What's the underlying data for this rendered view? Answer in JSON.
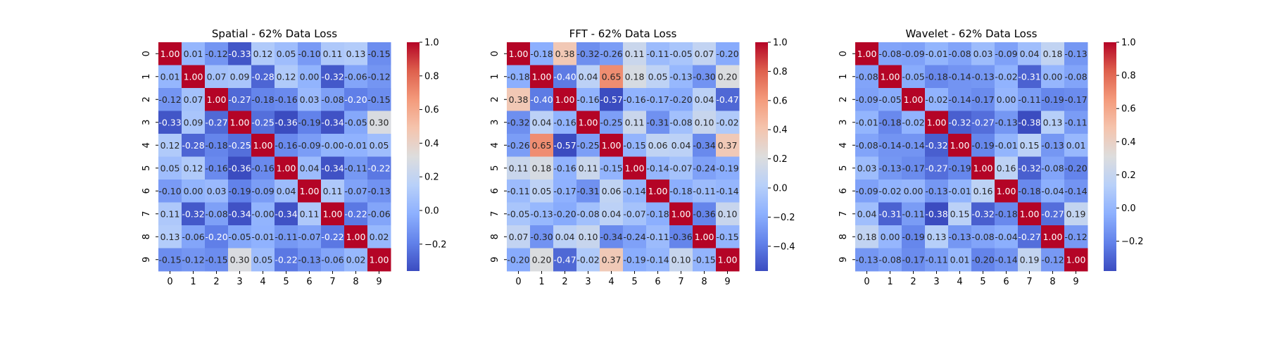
{
  "figure": {
    "background": "#ffffff"
  },
  "colormap": {
    "name": "coolwarm",
    "low": "#3b4cc0",
    "mid": "#dddddd",
    "high": "#b40426"
  },
  "chart_data": [
    {
      "type": "heatmap",
      "title": "Spatial - 62% Data Loss",
      "x_labels": [
        "0",
        "1",
        "2",
        "3",
        "4",
        "5",
        "6",
        "7",
        "8",
        "9"
      ],
      "y_labels": [
        "0",
        "1",
        "2",
        "3",
        "4",
        "5",
        "6",
        "7",
        "8",
        "9"
      ],
      "vmin": -0.36,
      "vmax": 1.0,
      "colorbar_ticks": [
        "1.0",
        "0.8",
        "0.6",
        "0.4",
        "0.2",
        "0.0",
        "−0.2"
      ],
      "values": [
        [
          1.0,
          0.01,
          -0.12,
          -0.33,
          0.12,
          0.05,
          -0.1,
          0.11,
          0.13,
          -0.15
        ],
        [
          0.01,
          1.0,
          0.07,
          0.09,
          -0.28,
          0.12,
          0.0,
          -0.32,
          -0.06,
          -0.12
        ],
        [
          -0.12,
          0.07,
          1.0,
          -0.27,
          -0.18,
          -0.16,
          0.03,
          -0.08,
          -0.2,
          -0.15
        ],
        [
          -0.33,
          0.09,
          -0.27,
          1.0,
          -0.25,
          -0.36,
          -0.19,
          -0.34,
          -0.05,
          0.3
        ],
        [
          0.12,
          -0.28,
          -0.18,
          -0.25,
          1.0,
          -0.16,
          -0.09,
          -0.0,
          -0.01,
          0.05
        ],
        [
          0.05,
          0.12,
          -0.16,
          -0.36,
          -0.16,
          1.0,
          0.04,
          -0.34,
          -0.11,
          -0.22
        ],
        [
          -0.1,
          0.0,
          0.03,
          -0.19,
          -0.09,
          0.04,
          1.0,
          0.11,
          -0.07,
          -0.13
        ],
        [
          0.11,
          -0.32,
          -0.08,
          -0.34,
          -0.0,
          -0.34,
          0.11,
          1.0,
          -0.22,
          -0.06
        ],
        [
          0.13,
          -0.06,
          -0.2,
          -0.05,
          -0.01,
          -0.11,
          -0.07,
          -0.22,
          1.0,
          0.02
        ],
        [
          -0.15,
          -0.12,
          -0.15,
          0.3,
          0.05,
          -0.22,
          -0.13,
          -0.06,
          0.02,
          1.0
        ]
      ]
    },
    {
      "type": "heatmap",
      "title": "FFT - 62% Data Loss",
      "x_labels": [
        "0",
        "1",
        "2",
        "3",
        "4",
        "5",
        "6",
        "7",
        "8",
        "9"
      ],
      "y_labels": [
        "0",
        "1",
        "2",
        "3",
        "4",
        "5",
        "6",
        "7",
        "8",
        "9"
      ],
      "vmin": -0.57,
      "vmax": 1.0,
      "colorbar_ticks": [
        "1.0",
        "0.8",
        "0.6",
        "0.4",
        "0.2",
        "0.0",
        "−0.2",
        "−0.4"
      ],
      "values": [
        [
          1.0,
          -0.18,
          0.38,
          -0.32,
          -0.26,
          0.11,
          -0.11,
          -0.05,
          0.07,
          -0.2
        ],
        [
          -0.18,
          1.0,
          -0.4,
          0.04,
          0.65,
          0.18,
          0.05,
          -0.13,
          -0.3,
          0.2
        ],
        [
          0.38,
          -0.4,
          1.0,
          -0.16,
          -0.57,
          -0.16,
          -0.17,
          -0.2,
          0.04,
          -0.47
        ],
        [
          -0.32,
          0.04,
          -0.16,
          1.0,
          -0.25,
          0.11,
          -0.31,
          -0.08,
          0.1,
          -0.02
        ],
        [
          -0.26,
          0.65,
          -0.57,
          -0.25,
          1.0,
          -0.15,
          0.06,
          0.04,
          -0.34,
          0.37
        ],
        [
          0.11,
          0.18,
          -0.16,
          0.11,
          -0.15,
          1.0,
          -0.14,
          -0.07,
          -0.24,
          -0.19
        ],
        [
          -0.11,
          0.05,
          -0.17,
          -0.31,
          0.06,
          -0.14,
          1.0,
          -0.18,
          -0.11,
          -0.14
        ],
        [
          -0.05,
          -0.13,
          -0.2,
          -0.08,
          0.04,
          -0.07,
          -0.18,
          1.0,
          -0.36,
          0.1
        ],
        [
          0.07,
          -0.3,
          0.04,
          0.1,
          -0.34,
          -0.24,
          -0.11,
          -0.36,
          1.0,
          -0.15
        ],
        [
          -0.2,
          0.2,
          -0.47,
          -0.02,
          0.37,
          -0.19,
          -0.14,
          0.1,
          -0.15,
          1.0
        ]
      ]
    },
    {
      "type": "heatmap",
      "title": "Wavelet - 62% Data Loss",
      "x_labels": [
        "0",
        "1",
        "2",
        "3",
        "4",
        "5",
        "6",
        "7",
        "8",
        "9"
      ],
      "y_labels": [
        "0",
        "1",
        "2",
        "3",
        "4",
        "5",
        "6",
        "7",
        "8",
        "9"
      ],
      "vmin": -0.38,
      "vmax": 1.0,
      "colorbar_ticks": [
        "1.0",
        "0.8",
        "0.6",
        "0.4",
        "0.2",
        "0.0",
        "−0.2"
      ],
      "values": [
        [
          1.0,
          -0.08,
          -0.09,
          -0.01,
          -0.08,
          0.03,
          -0.09,
          0.04,
          0.18,
          -0.13
        ],
        [
          -0.08,
          1.0,
          -0.05,
          -0.18,
          -0.14,
          -0.13,
          -0.02,
          -0.31,
          0.0,
          -0.08
        ],
        [
          -0.09,
          -0.05,
          1.0,
          -0.02,
          -0.14,
          -0.17,
          0.0,
          -0.11,
          -0.19,
          -0.17
        ],
        [
          -0.01,
          -0.18,
          -0.02,
          1.0,
          -0.32,
          -0.27,
          -0.13,
          -0.38,
          0.13,
          -0.11
        ],
        [
          -0.08,
          -0.14,
          -0.14,
          -0.32,
          1.0,
          -0.19,
          -0.01,
          0.15,
          -0.13,
          0.01
        ],
        [
          0.03,
          -0.13,
          -0.17,
          -0.27,
          -0.19,
          1.0,
          0.16,
          -0.32,
          -0.08,
          -0.2
        ],
        [
          -0.09,
          -0.02,
          0.0,
          -0.13,
          -0.01,
          0.16,
          1.0,
          -0.18,
          -0.04,
          -0.14
        ],
        [
          0.04,
          -0.31,
          -0.11,
          -0.38,
          0.15,
          -0.32,
          -0.18,
          1.0,
          -0.27,
          0.19
        ],
        [
          0.18,
          0.0,
          -0.19,
          0.13,
          -0.13,
          -0.08,
          -0.04,
          -0.27,
          1.0,
          -0.12
        ],
        [
          -0.13,
          -0.08,
          -0.17,
          -0.11,
          0.01,
          -0.2,
          -0.14,
          0.19,
          -0.12,
          1.0
        ]
      ]
    }
  ]
}
